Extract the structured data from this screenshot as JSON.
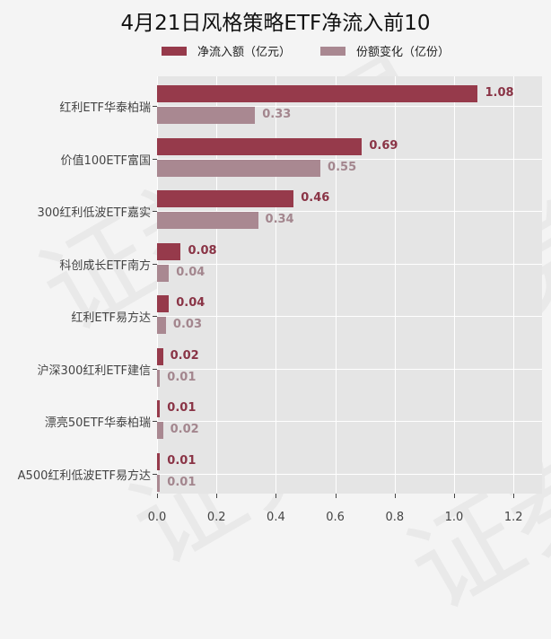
{
  "title": "4月21日风格策略ETF净流入前10",
  "watermark": "证券之星",
  "colors": {
    "net_inflow": "#963a4b",
    "share_change": "#a98891",
    "net_label": "#8a3446",
    "share_label": "#a3868e",
    "plot_bg": "#e5e5e5",
    "page_bg": "#f4f4f4"
  },
  "legend": [
    {
      "label": "净流入额（亿元）",
      "color": "#963a4b"
    },
    {
      "label": "份额变化（亿份）",
      "color": "#a98891"
    }
  ],
  "x_axis": {
    "ticks": [
      "0.0",
      "0.2",
      "0.4",
      "0.6",
      "0.8",
      "1.0",
      "1.2"
    ]
  },
  "chart_data": {
    "type": "bar",
    "orientation": "horizontal",
    "title": "4月21日风格策略ETF净流入前10",
    "categories": [
      "红利ETF华泰柏瑞",
      "价值100ETF富国",
      "300红利低波ETF嘉实",
      "科创成长ETF南方",
      "红利ETF易方达",
      "沪深300红利ETF建信",
      "漂亮50ETF华泰柏瑞",
      "A500红利低波ETF易方达"
    ],
    "series": [
      {
        "name": "净流入额（亿元）",
        "values": [
          1.08,
          0.69,
          0.46,
          0.08,
          0.04,
          0.02,
          0.01,
          0.01
        ]
      },
      {
        "name": "份额变化（亿份）",
        "values": [
          0.33,
          0.55,
          0.34,
          0.04,
          0.03,
          0.01,
          0.02,
          0.01
        ]
      }
    ],
    "value_labels": {
      "net": [
        "1.08",
        "0.69",
        "0.46",
        "0.08",
        "0.04",
        "0.02",
        "0.01",
        "0.01"
      ],
      "share": [
        "0.33",
        "0.55",
        "0.34",
        "0.04",
        "0.03",
        "0.01",
        "0.02",
        "0.01"
      ]
    },
    "xlabel": "",
    "ylabel": "",
    "xlim": [
      0,
      1.3
    ],
    "xticks": [
      0.0,
      0.2,
      0.4,
      0.6,
      0.8,
      1.0,
      1.2
    ],
    "grid": true,
    "legend_position": "top"
  }
}
